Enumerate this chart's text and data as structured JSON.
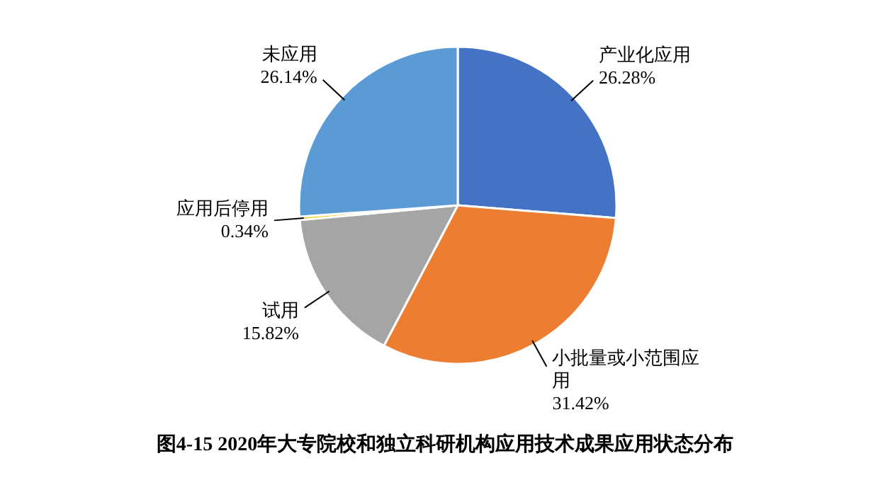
{
  "chart_data": {
    "type": "pie",
    "title": "图4-15   2020年大专院校和独立科研机构应用技术成果应用状态分布",
    "categories": [
      "产业化应用",
      "小批量或小范围应用",
      "试用",
      "应用后停用",
      "未应用"
    ],
    "values": [
      26.28,
      31.42,
      15.82,
      0.34,
      26.14
    ],
    "value_labels": [
      "26.28%",
      "31.42%",
      "15.82%",
      "0.34%",
      "26.14%"
    ],
    "colors": [
      "#4472c4",
      "#ed7d31",
      "#a5a5a5",
      "#ffc000",
      "#5b9bd5"
    ]
  }
}
